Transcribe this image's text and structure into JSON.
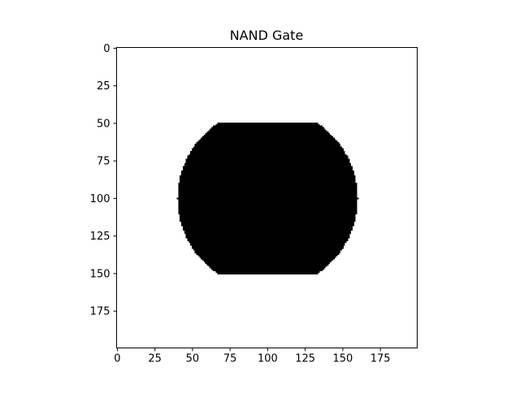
{
  "chart_data": {
    "type": "heatmap",
    "title": "NAND Gate",
    "xlabel": "",
    "ylabel": "",
    "image_size": [
      200,
      200
    ],
    "xlim": [
      0,
      200
    ],
    "ylim": [
      200,
      0
    ],
    "xticks": [
      0,
      25,
      50,
      75,
      100,
      125,
      150,
      175
    ],
    "yticks": [
      0,
      25,
      50,
      75,
      100,
      125,
      150,
      175
    ],
    "grid": false,
    "colormap": {
      "0": "#000000",
      "1": "#ffffff"
    },
    "background_value": 1,
    "shape": {
      "description_value": 0,
      "circle": {
        "center": [
          100,
          100
        ],
        "radius": 60
      },
      "clip_rows": [
        50,
        150
      ]
    }
  }
}
